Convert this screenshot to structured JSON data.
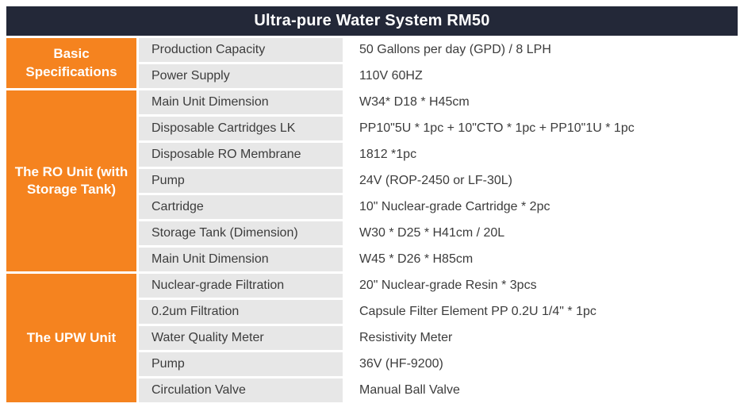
{
  "title": "Ultra-pure Water System RM50",
  "colors": {
    "header_bg": "#232838",
    "accent_orange": "#f5831f",
    "label_cell_bg": "#e7e7e7",
    "value_cell_bg": "#ffffff",
    "text": "#3c3c3c"
  },
  "groups": [
    {
      "name": "Basic Specifications",
      "rows": [
        {
          "label": "Production Capacity",
          "value": "50 Gallons per day (GPD) / 8 LPH"
        },
        {
          "label": "Power Supply",
          "value": "110V 60HZ"
        }
      ]
    },
    {
      "name": "The RO Unit (with Storage Tank)",
      "rows": [
        {
          "label": "Main Unit Dimension",
          "value": "W34* D18 * H45cm"
        },
        {
          "label": "Disposable Cartridges LK",
          "value": "PP10\"5U * 1pc + 10\"CTO * 1pc + PP10\"1U * 1pc"
        },
        {
          "label": "Disposable RO Membrane",
          "value": "1812 *1pc"
        },
        {
          "label": "Pump",
          "value": "24V (ROP-2450 or LF-30L)"
        },
        {
          "label": "Cartridge",
          "value": "10\" Nuclear-grade Cartridge * 2pc"
        },
        {
          "label": "Storage Tank (Dimension)",
          "value": "W30 * D25 * H41cm / 20L"
        },
        {
          "label": "Main Unit Dimension",
          "value": "W45 * D26 * H85cm"
        }
      ]
    },
    {
      "name": "The UPW Unit",
      "rows": [
        {
          "label": "Nuclear-grade Filtration",
          "value": "20\" Nuclear-grade Resin * 3pcs"
        },
        {
          "label": "0.2um Filtration",
          "value": "Capsule Filter Element PP 0.2U 1/4\" * 1pc"
        },
        {
          "label": "Water Quality Meter",
          "value": "Resistivity Meter"
        },
        {
          "label": "Pump",
          "value": "36V (HF-9200)"
        },
        {
          "label": "Circulation Valve",
          "value": "Manual Ball Valve"
        }
      ]
    }
  ]
}
